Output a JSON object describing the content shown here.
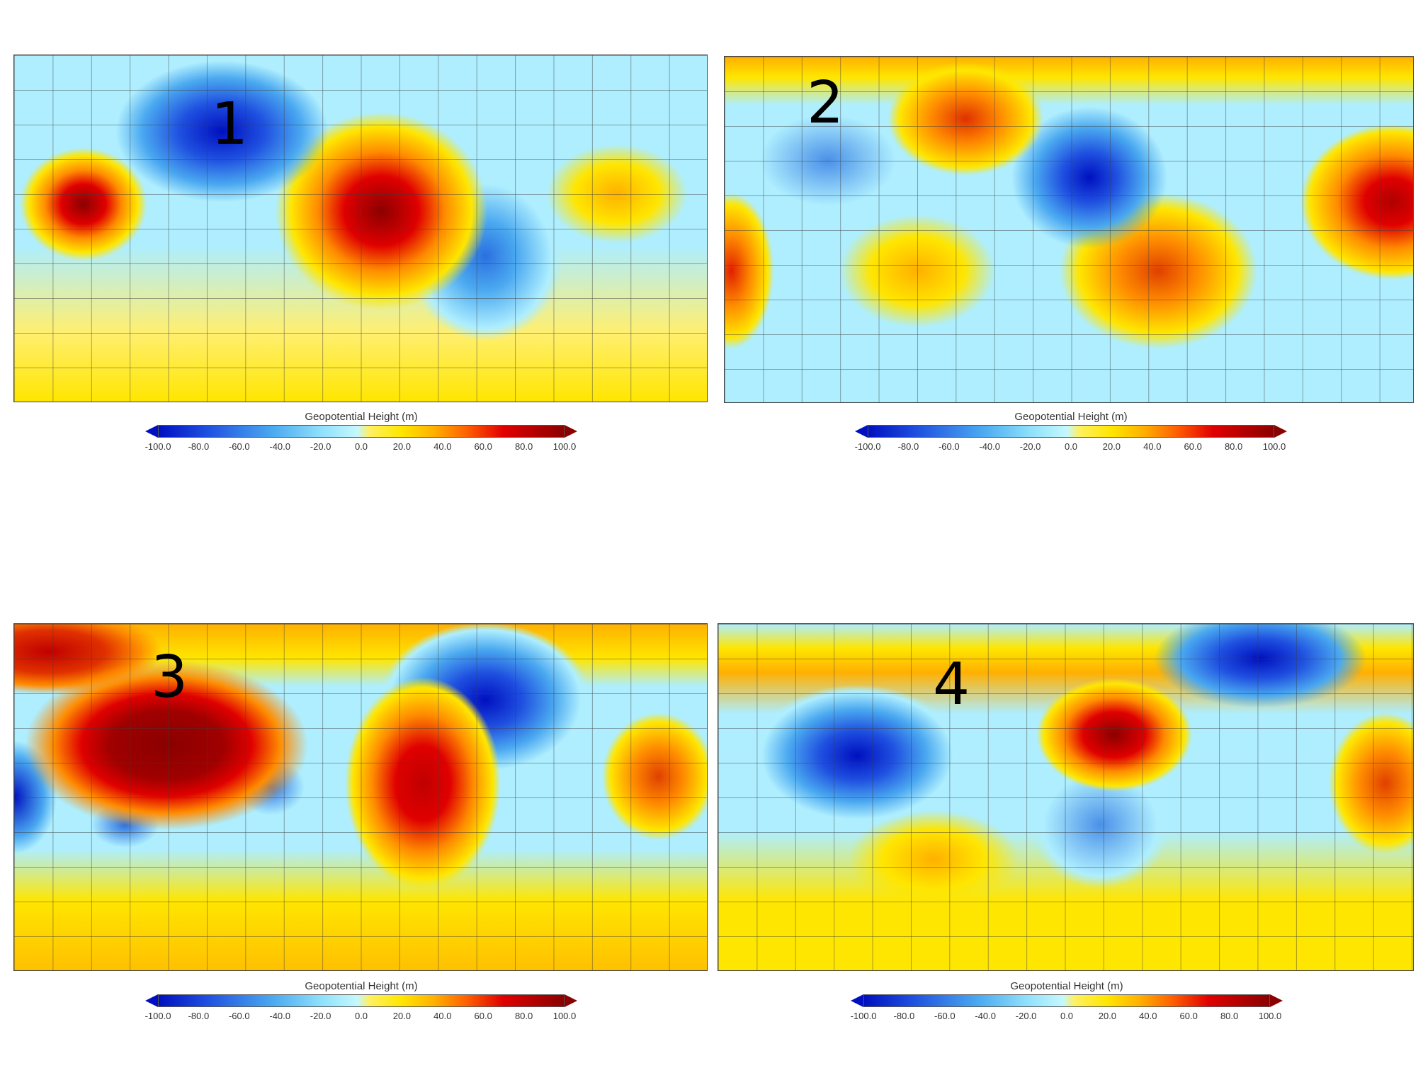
{
  "panels": [
    {
      "label": "1"
    },
    {
      "label": "2"
    },
    {
      "label": "3"
    },
    {
      "label": "4"
    }
  ],
  "colorbar": {
    "title": "Geopotential Height (m)",
    "ticks": [
      "-100.0",
      "-80.0",
      "-60.0",
      "-40.0",
      "-20.0",
      "0.0",
      "20.0",
      "40.0",
      "60.0",
      "80.0",
      "100.0"
    ],
    "range": [
      -100,
      100
    ],
    "colors": [
      "#0010c0",
      "#4aa8f0",
      "#c4f8ff",
      "#ffe600",
      "#ff8c00",
      "#e00000",
      "#8b0000"
    ]
  }
}
